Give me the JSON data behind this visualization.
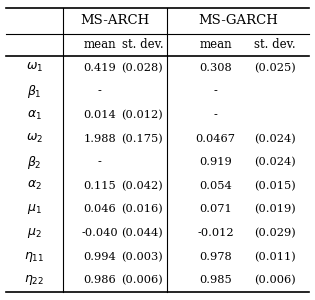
{
  "row_labels": [
    "$\\omega_1$",
    "$\\beta_1$",
    "$\\alpha_1$",
    "$\\omega_2$",
    "$\\beta_2$",
    "$\\alpha_2$",
    "$\\mu_1$",
    "$\\mu_2$",
    "$\\eta_{11}$",
    "$\\eta_{22}$"
  ],
  "ms_arch_mean": [
    "0.419",
    "-",
    "0.014",
    "1.988",
    "-",
    "0.115",
    "0.046",
    "-0.040",
    "0.994",
    "0.986"
  ],
  "ms_arch_sd": [
    "(0.028)",
    "",
    "(0.012)",
    "(0.175)",
    "",
    "(0.042)",
    "(0.016)",
    "(0.044)",
    "(0.003)",
    "(0.006)"
  ],
  "ms_garch_mean": [
    "0.308",
    "-",
    "-",
    "0.0467",
    "0.919",
    "0.054",
    "0.071",
    "-0.012",
    "0.978",
    "0.985"
  ],
  "ms_garch_sd": [
    "(0.025)",
    "",
    "",
    "(0.024)",
    "(0.024)",
    "(0.015)",
    "(0.019)",
    "(0.029)",
    "(0.011)",
    "(0.006)"
  ],
  "col_header1": "MS-ARCH",
  "col_header2": "MS-GARCH",
  "sub_header": [
    "mean",
    "st. dev.",
    "mean",
    "st. dev."
  ],
  "bg_color": "#ffffff",
  "text_color": "#000000",
  "line_color": "#000000",
  "figwidth": 3.15,
  "figheight": 3.0,
  "dpi": 100
}
